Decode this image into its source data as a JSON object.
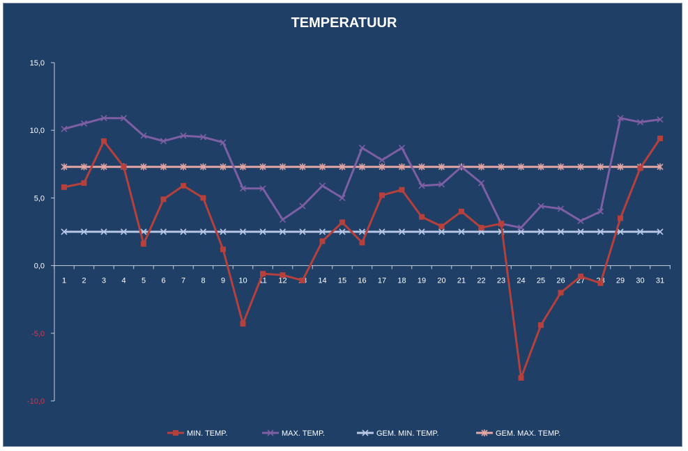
{
  "chart_data": {
    "type": "line",
    "title": "TEMPERATUUR",
    "xlabel": "",
    "ylabel": "",
    "x": [
      1,
      2,
      3,
      4,
      5,
      6,
      7,
      8,
      9,
      10,
      11,
      12,
      13,
      14,
      15,
      16,
      17,
      18,
      19,
      20,
      21,
      22,
      23,
      24,
      25,
      26,
      27,
      28,
      29,
      30,
      31
    ],
    "ylim": [
      -10,
      15
    ],
    "yticks": [
      15,
      10,
      5,
      0,
      -5,
      -10
    ],
    "ytick_labels": [
      "15,0",
      "10,0",
      "5,0",
      "0,0",
      "-5,0",
      "-10,0"
    ],
    "ytick_negative_color": "#e0334a",
    "grid": false,
    "legend_position": "bottom",
    "series": [
      {
        "name": "MIN. TEMP.",
        "color": "#b5403c",
        "marker": "square",
        "values": [
          5.8,
          6.1,
          9.2,
          7.3,
          1.6,
          4.9,
          5.9,
          5.0,
          1.2,
          -4.3,
          -0.6,
          -0.7,
          -1.1,
          1.8,
          3.2,
          1.7,
          5.2,
          5.6,
          3.6,
          2.9,
          4.0,
          2.8,
          3.1,
          -8.3,
          -4.4,
          -2.0,
          -0.8,
          -1.3,
          3.5,
          7.2,
          9.4
        ]
      },
      {
        "name": "MAX. TEMP.",
        "color": "#7e5fa3",
        "marker": "x",
        "values": [
          10.1,
          10.5,
          10.9,
          10.9,
          9.6,
          9.2,
          9.6,
          9.5,
          9.1,
          5.7,
          5.7,
          3.4,
          4.4,
          5.9,
          5.0,
          8.7,
          7.8,
          8.7,
          5.9,
          6.0,
          7.3,
          6.1,
          3.1,
          2.8,
          4.4,
          4.2,
          3.3,
          4.0,
          10.9,
          10.6,
          10.8
        ]
      },
      {
        "name": "GEM. MIN. TEMP.",
        "color": "#b8c7e6",
        "marker": "x",
        "values": [
          2.5,
          2.5,
          2.5,
          2.5,
          2.5,
          2.5,
          2.5,
          2.5,
          2.5,
          2.5,
          2.5,
          2.5,
          2.5,
          2.5,
          2.5,
          2.5,
          2.5,
          2.5,
          2.5,
          2.5,
          2.5,
          2.5,
          2.5,
          2.5,
          2.5,
          2.5,
          2.5,
          2.5,
          2.5,
          2.5,
          2.5
        ]
      },
      {
        "name": "GEM. MAX. TEMP.",
        "color": "#e4a7a5",
        "marker": "star",
        "values": [
          7.3,
          7.3,
          7.3,
          7.3,
          7.3,
          7.3,
          7.3,
          7.3,
          7.3,
          7.3,
          7.3,
          7.3,
          7.3,
          7.3,
          7.3,
          7.3,
          7.3,
          7.3,
          7.3,
          7.3,
          7.3,
          7.3,
          7.3,
          7.3,
          7.3,
          7.3,
          7.3,
          7.3,
          7.3,
          7.3,
          7.3
        ]
      }
    ]
  },
  "colors": {
    "background": "#1f3f66",
    "axis": "#c9cfd8",
    "text": "#ffffff"
  }
}
